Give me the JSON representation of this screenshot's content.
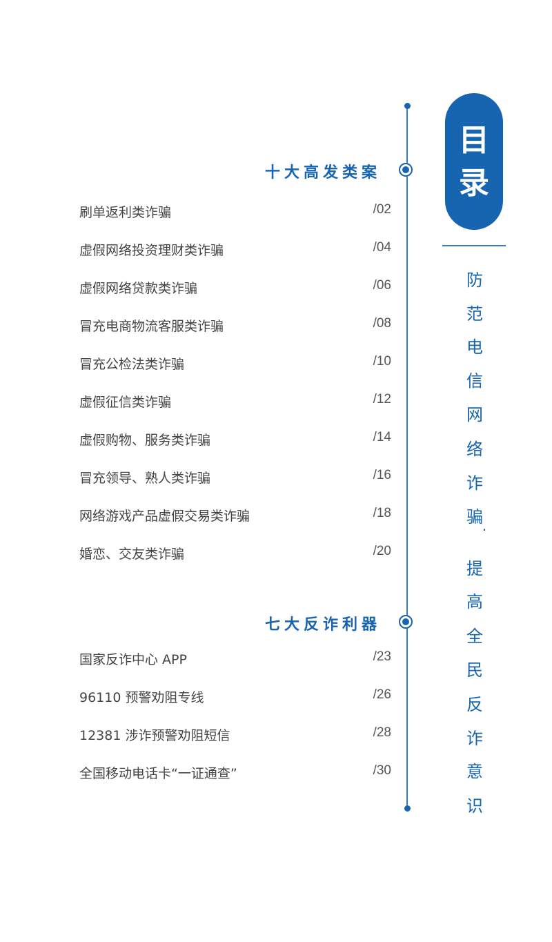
{
  "title": {
    "line1": "目",
    "line2": "录"
  },
  "subtitle_chars": [
    "防",
    "范",
    "电",
    "信",
    "网",
    "络",
    "诈",
    "骗",
    "·",
    "提",
    "高",
    "全",
    "民",
    "反",
    "诈",
    "意",
    "识"
  ],
  "sections": [
    {
      "heading": "十大高发类案",
      "items": [
        {
          "label": "刷单返利类诈骗",
          "page": "/02"
        },
        {
          "label": "虚假网络投资理财类诈骗",
          "page": "/04"
        },
        {
          "label": "虚假网络贷款类诈骗",
          "page": "/06"
        },
        {
          "label": "冒充电商物流客服类诈骗",
          "page": "/08"
        },
        {
          "label": "冒充公检法类诈骗",
          "page": "/10"
        },
        {
          "label": "虚假征信类诈骗",
          "page": "/12"
        },
        {
          "label": "虚假购物、服务类诈骗",
          "page": "/14"
        },
        {
          "label": "冒充领导、熟人类诈骗",
          "page": "/16"
        },
        {
          "label": "网络游戏产品虚假交易类诈骗",
          "page": "/18"
        },
        {
          "label": "婚恋、交友类诈骗",
          "page": "/20"
        }
      ]
    },
    {
      "heading": "七大反诈利器",
      "items": [
        {
          "label": "国家反诈中心 APP",
          "page": "/23"
        },
        {
          "label": "96110 预警劝阻专线",
          "page": "/26"
        },
        {
          "label": "12381 涉诈预警劝阻短信",
          "page": "/28"
        },
        {
          "label": "全国移动电话卡“一证通查”",
          "page": "/30"
        }
      ]
    }
  ],
  "colors": {
    "accent": "#1764b0"
  }
}
